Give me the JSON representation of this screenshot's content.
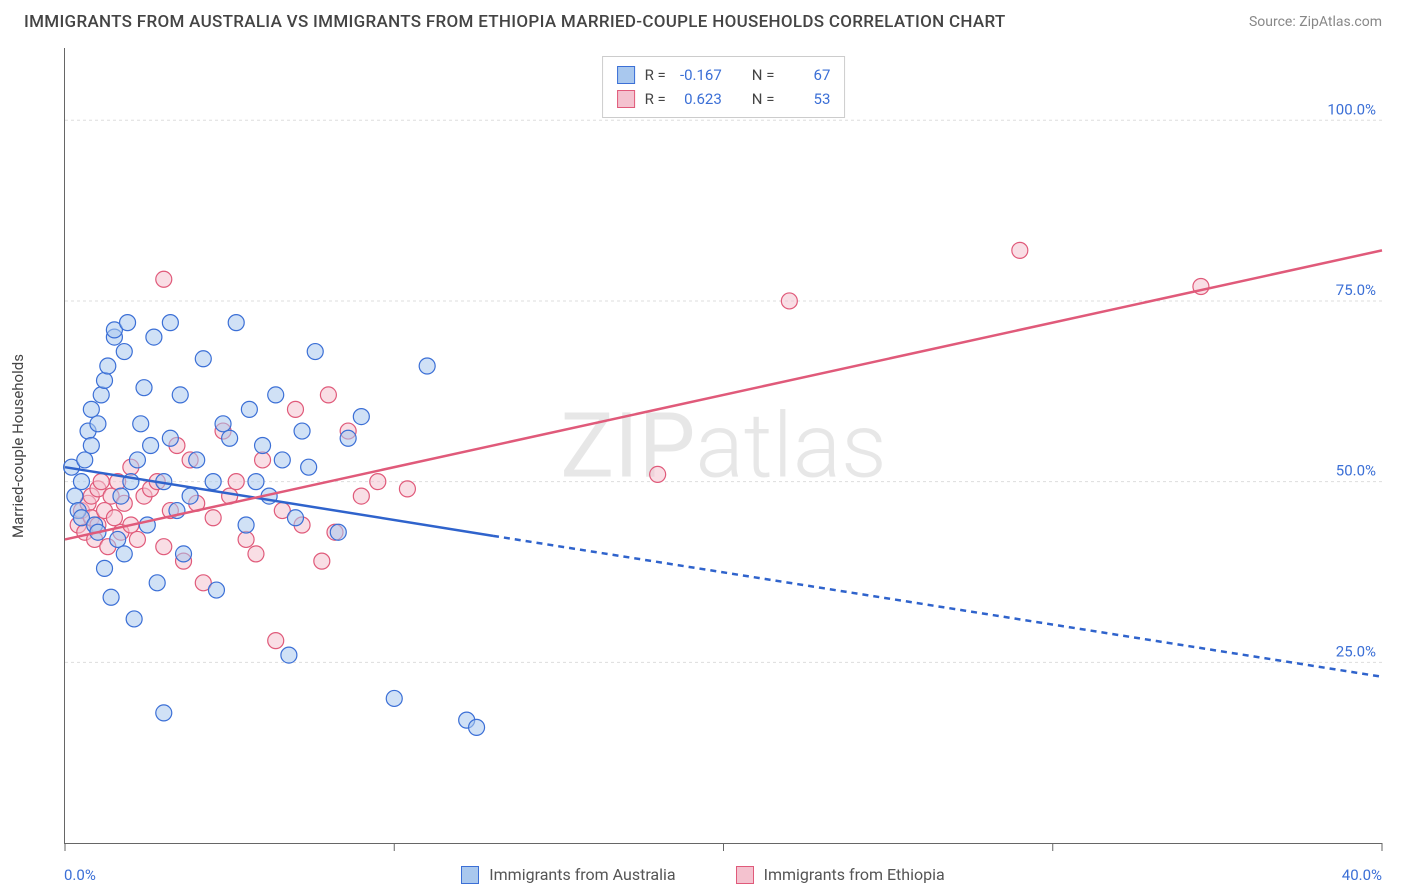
{
  "header": {
    "title": "IMMIGRANTS FROM AUSTRALIA VS IMMIGRANTS FROM ETHIOPIA MARRIED-COUPLE HOUSEHOLDS CORRELATION CHART",
    "source": "Source: ZipAtlas.com"
  },
  "watermark": "ZIPatlas",
  "chart": {
    "type": "scatter",
    "ylabel": "Married-couple Households",
    "xlim": [
      0,
      40
    ],
    "ylim": [
      0,
      110
    ],
    "x_ticks": [
      0,
      10,
      20,
      30,
      40
    ],
    "x_tick_labels": [
      "0.0%",
      "",
      "",
      "",
      "40.0%"
    ],
    "y_gridlines": [
      25,
      50,
      75,
      100
    ],
    "y_tick_labels": [
      "25.0%",
      "50.0%",
      "75.0%",
      "100.0%"
    ],
    "grid_color": "#dddddd",
    "background_color": "#ffffff",
    "marker_radius": 8,
    "marker_stroke_width": 1.2,
    "series": {
      "australia": {
        "label": "Immigrants from Australia",
        "fill": "#a9c8ee",
        "stroke": "#3b6fd6",
        "fill_opacity": 0.55,
        "R": "-0.167",
        "N": "67",
        "trend": {
          "x1": 0,
          "y1": 52,
          "x2_solid": 13,
          "y2_solid": 42.5,
          "x2": 40,
          "y2": 23,
          "color": "#2f63cc",
          "width": 2.5,
          "dash": "6,5"
        },
        "points": [
          [
            0.2,
            52
          ],
          [
            0.3,
            48
          ],
          [
            0.4,
            46
          ],
          [
            0.5,
            50
          ],
          [
            0.5,
            45
          ],
          [
            0.6,
            53
          ],
          [
            0.7,
            57
          ],
          [
            0.8,
            55
          ],
          [
            0.8,
            60
          ],
          [
            0.9,
            44
          ],
          [
            1.0,
            43
          ],
          [
            1.0,
            58
          ],
          [
            1.1,
            62
          ],
          [
            1.2,
            64
          ],
          [
            1.2,
            38
          ],
          [
            1.3,
            66
          ],
          [
            1.4,
            34
          ],
          [
            1.5,
            70
          ],
          [
            1.5,
            71
          ],
          [
            1.6,
            42
          ],
          [
            1.7,
            48
          ],
          [
            1.8,
            68
          ],
          [
            1.8,
            40
          ],
          [
            1.9,
            72
          ],
          [
            2.0,
            50
          ],
          [
            2.1,
            31
          ],
          [
            2.2,
            53
          ],
          [
            2.3,
            58
          ],
          [
            2.4,
            63
          ],
          [
            2.5,
            44
          ],
          [
            2.6,
            55
          ],
          [
            2.7,
            70
          ],
          [
            2.8,
            36
          ],
          [
            3.0,
            18
          ],
          [
            3.0,
            50
          ],
          [
            3.2,
            56
          ],
          [
            3.2,
            72
          ],
          [
            3.4,
            46
          ],
          [
            3.5,
            62
          ],
          [
            3.6,
            40
          ],
          [
            3.8,
            48
          ],
          [
            4.0,
            53
          ],
          [
            4.2,
            67
          ],
          [
            4.5,
            50
          ],
          [
            4.6,
            35
          ],
          [
            4.8,
            58
          ],
          [
            5.0,
            56
          ],
          [
            5.2,
            72
          ],
          [
            5.5,
            44
          ],
          [
            5.6,
            60
          ],
          [
            5.8,
            50
          ],
          [
            6.0,
            55
          ],
          [
            6.2,
            48
          ],
          [
            6.4,
            62
          ],
          [
            6.6,
            53
          ],
          [
            6.8,
            26
          ],
          [
            7.0,
            45
          ],
          [
            7.2,
            57
          ],
          [
            7.4,
            52
          ],
          [
            7.6,
            68
          ],
          [
            8.3,
            43
          ],
          [
            8.6,
            56
          ],
          [
            9.0,
            59
          ],
          [
            10.0,
            20
          ],
          [
            11.0,
            66
          ],
          [
            12.2,
            17
          ],
          [
            12.5,
            16
          ]
        ]
      },
      "ethiopia": {
        "label": "Immigrants from Ethiopia",
        "fill": "#f4c2cf",
        "stroke": "#e05a7a",
        "fill_opacity": 0.55,
        "R": "0.623",
        "N": "53",
        "trend": {
          "x1": 0,
          "y1": 42,
          "x2_solid": 40,
          "y2_solid": 82,
          "x2": 40,
          "y2": 82,
          "color": "#e05a7a",
          "width": 2.5,
          "dash": ""
        },
        "points": [
          [
            0.4,
            44
          ],
          [
            0.5,
            46
          ],
          [
            0.6,
            43
          ],
          [
            0.7,
            47
          ],
          [
            0.8,
            45
          ],
          [
            0.8,
            48
          ],
          [
            0.9,
            42
          ],
          [
            1.0,
            49
          ],
          [
            1.0,
            44
          ],
          [
            1.1,
            50
          ],
          [
            1.2,
            46
          ],
          [
            1.3,
            41
          ],
          [
            1.4,
            48
          ],
          [
            1.5,
            45
          ],
          [
            1.6,
            50
          ],
          [
            1.7,
            43
          ],
          [
            1.8,
            47
          ],
          [
            2.0,
            52
          ],
          [
            2.0,
            44
          ],
          [
            2.2,
            42
          ],
          [
            2.4,
            48
          ],
          [
            2.6,
            49
          ],
          [
            2.8,
            50
          ],
          [
            3.0,
            78
          ],
          [
            3.0,
            41
          ],
          [
            3.2,
            46
          ],
          [
            3.4,
            55
          ],
          [
            3.6,
            39
          ],
          [
            3.8,
            53
          ],
          [
            4.0,
            47
          ],
          [
            4.2,
            36
          ],
          [
            4.5,
            45
          ],
          [
            4.8,
            57
          ],
          [
            5.0,
            48
          ],
          [
            5.2,
            50
          ],
          [
            5.5,
            42
          ],
          [
            5.8,
            40
          ],
          [
            6.0,
            53
          ],
          [
            6.4,
            28
          ],
          [
            6.6,
            46
          ],
          [
            7.0,
            60
          ],
          [
            7.2,
            44
          ],
          [
            7.8,
            39
          ],
          [
            8.0,
            62
          ],
          [
            8.2,
            43
          ],
          [
            8.6,
            57
          ],
          [
            9.0,
            48
          ],
          [
            9.5,
            50
          ],
          [
            10.4,
            49
          ],
          [
            18.0,
            51
          ],
          [
            22.0,
            75
          ],
          [
            29.0,
            82
          ],
          [
            34.5,
            77
          ]
        ]
      }
    }
  }
}
